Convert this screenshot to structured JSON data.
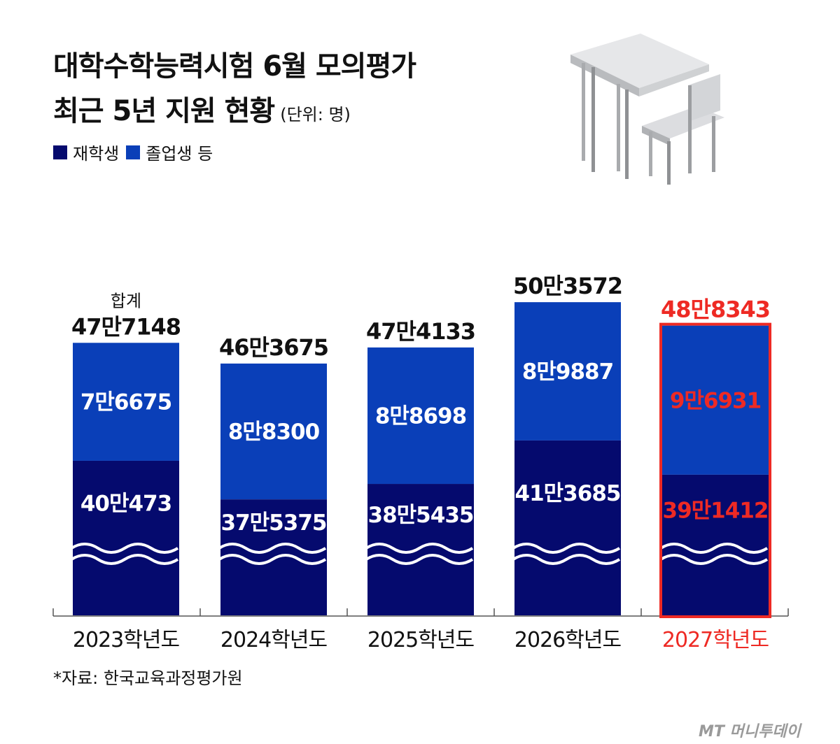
{
  "title": {
    "line1": "대학수학능력시험 6월 모의평가",
    "line2": "최근 5년 지원 현황",
    "unit": "(단위: 명)"
  },
  "legend": [
    {
      "label": "재학생",
      "color": "#050a6e"
    },
    {
      "label": "졸업생 등",
      "color": "#0a3fb8"
    }
  ],
  "total_label": "합계",
  "highlight_color": "#ee2a24",
  "chart_data": {
    "type": "bar",
    "stacked": true,
    "axis_break": true,
    "categories": [
      "2023학년도",
      "2024학년도",
      "2025학년도",
      "2026학년도",
      "2027학년도"
    ],
    "series": [
      {
        "name": "재학생",
        "values": [
          400473,
          375375,
          385435,
          413685,
          391412
        ],
        "labels": [
          "40만473",
          "37만5375",
          "38만5435",
          "41만3685",
          "39만1412"
        ],
        "color": "#050a6e"
      },
      {
        "name": "졸업생 등",
        "values": [
          76675,
          88300,
          88698,
          89887,
          96931
        ],
        "labels": [
          "7만6675",
          "8만8300",
          "8만8698",
          "8만9887",
          "9만6931"
        ],
        "color": "#0a3fb8"
      }
    ],
    "totals": [
      477148,
      463675,
      474133,
      503572,
      488343
    ],
    "total_labels": [
      "47만7148",
      "46만3675",
      "47만4133",
      "50만3572",
      "48만8343"
    ],
    "highlight_index": 4
  },
  "source": "*자료: 한국교육과정평가원",
  "credit": "MT 머니투데이"
}
